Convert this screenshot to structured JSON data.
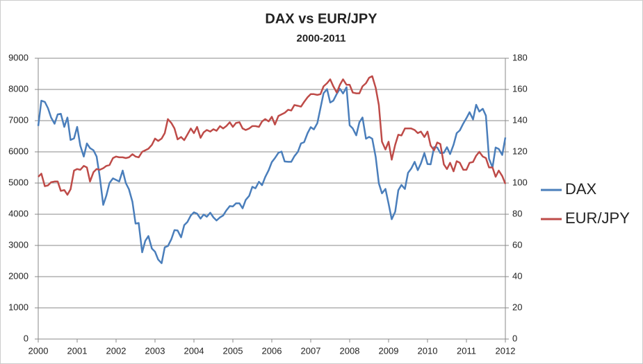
{
  "chart_data": {
    "type": "line",
    "title": "DAX vs EUR/JPY",
    "subtitle": "2000-2011",
    "x": [
      2000,
      2000.08,
      2000.17,
      2000.25,
      2000.33,
      2000.42,
      2000.5,
      2000.58,
      2000.67,
      2000.75,
      2000.83,
      2000.92,
      2001,
      2001.08,
      2001.17,
      2001.25,
      2001.33,
      2001.42,
      2001.5,
      2001.58,
      2001.67,
      2001.75,
      2001.83,
      2001.92,
      2002,
      2002.08,
      2002.17,
      2002.25,
      2002.33,
      2002.42,
      2002.5,
      2002.58,
      2002.67,
      2002.75,
      2002.83,
      2002.92,
      2003,
      2003.08,
      2003.17,
      2003.25,
      2003.33,
      2003.42,
      2003.5,
      2003.58,
      2003.67,
      2003.75,
      2003.83,
      2003.92,
      2004,
      2004.08,
      2004.17,
      2004.25,
      2004.33,
      2004.42,
      2004.5,
      2004.58,
      2004.67,
      2004.75,
      2004.83,
      2004.92,
      2005,
      2005.08,
      2005.17,
      2005.25,
      2005.33,
      2005.42,
      2005.5,
      2005.58,
      2005.67,
      2005.75,
      2005.83,
      2005.92,
      2006,
      2006.08,
      2006.17,
      2006.25,
      2006.33,
      2006.42,
      2006.5,
      2006.58,
      2006.67,
      2006.75,
      2006.83,
      2006.92,
      2007,
      2007.08,
      2007.17,
      2007.25,
      2007.33,
      2007.42,
      2007.5,
      2007.58,
      2007.67,
      2007.75,
      2007.83,
      2007.92,
      2008,
      2008.08,
      2008.17,
      2008.25,
      2008.33,
      2008.42,
      2008.5,
      2008.58,
      2008.67,
      2008.75,
      2008.83,
      2008.92,
      2009,
      2009.08,
      2009.17,
      2009.25,
      2009.33,
      2009.42,
      2009.5,
      2009.58,
      2009.67,
      2009.75,
      2009.83,
      2009.92,
      2010,
      2010.08,
      2010.17,
      2010.25,
      2010.33,
      2010.42,
      2010.5,
      2010.58,
      2010.67,
      2010.75,
      2010.83,
      2010.92,
      2011,
      2011.08,
      2011.17,
      2011.25,
      2011.33,
      2011.42,
      2011.5,
      2011.58,
      2011.67,
      2011.75,
      2011.83,
      2011.92,
      2012
    ],
    "series": [
      {
        "name": "DAX",
        "color": "#4a7ebb",
        "axis": "y",
        "values": [
          6830,
          7640,
          7600,
          7400,
          7100,
          6900,
          7200,
          7220,
          6800,
          7100,
          6380,
          6430,
          6800,
          6200,
          5850,
          6270,
          6120,
          6050,
          5850,
          5200,
          4300,
          4600,
          5000,
          5150,
          5100,
          5050,
          5400,
          5000,
          4800,
          4400,
          3700,
          3720,
          2780,
          3150,
          3300,
          2900,
          2800,
          2550,
          2430,
          2940,
          2980,
          3200,
          3490,
          3480,
          3260,
          3650,
          3750,
          3960,
          4060,
          4020,
          3860,
          3990,
          3920,
          4050,
          3900,
          3800,
          3900,
          3960,
          4120,
          4260,
          4250,
          4350,
          4350,
          4190,
          4460,
          4590,
          4880,
          4830,
          5040,
          4930,
          5190,
          5410,
          5670,
          5800,
          5970,
          6010,
          5690,
          5680,
          5680,
          5860,
          6000,
          6270,
          6310,
          6600,
          6790,
          6720,
          6920,
          7400,
          7880,
          8010,
          7580,
          7640,
          7860,
          8020,
          7870,
          8070,
          6850,
          6750,
          6530,
          6950,
          7100,
          6420,
          6480,
          6420,
          5830,
          4990,
          4670,
          4810,
          4340,
          3840,
          4080,
          4770,
          4940,
          4810,
          5330,
          5460,
          5680,
          5410,
          5630,
          5960,
          5610,
          5600,
          6150,
          6140,
          5960,
          5970,
          6150,
          5930,
          6230,
          6600,
          6690,
          6910,
          7080,
          7270,
          7040,
          7510,
          7290,
          7380,
          7160,
          5780,
          5500,
          6140,
          6090,
          5900,
          6460
        ]
      },
      {
        "name": "EUR/JPY",
        "color": "#be4b48",
        "axis": "y2",
        "values": [
          104,
          106,
          98,
          98.5,
          100.5,
          101,
          101,
          95,
          95.5,
          92.5,
          96,
          108,
          109,
          108.5,
          111,
          110,
          101,
          107,
          109,
          108.5,
          109.5,
          111,
          111.5,
          116,
          117,
          116.5,
          116.5,
          116,
          116.5,
          118.5,
          117,
          116.5,
          120,
          121,
          122,
          124.5,
          128.5,
          127,
          128.5,
          132,
          141,
          138.5,
          135,
          128,
          129.5,
          127.5,
          131,
          135,
          132,
          136,
          129,
          132.5,
          134,
          133,
          134.5,
          133.5,
          136.5,
          135,
          136.5,
          139,
          136,
          138.5,
          139,
          135,
          134,
          135,
          136.5,
          136.5,
          136,
          139.5,
          141,
          139.5,
          142.5,
          137.5,
          143,
          144,
          145,
          147,
          146.5,
          150,
          149.5,
          149,
          152,
          155,
          157,
          157,
          156.5,
          157,
          162,
          164,
          166.5,
          162,
          158,
          163,
          166.5,
          163,
          163,
          158,
          157.5,
          157.5,
          162,
          164,
          167.5,
          168.5,
          161,
          150,
          126.5,
          121.5,
          126.5,
          115,
          124.5,
          131,
          130.5,
          135,
          135,
          135,
          134,
          132,
          133,
          129.5,
          133,
          124,
          121,
          126,
          125,
          112,
          109,
          113,
          107.5,
          114,
          113,
          108.5,
          108.5,
          113,
          113.5,
          117.5,
          120,
          117,
          116,
          110,
          110,
          104,
          108,
          104.5,
          99.5
        ]
      }
    ],
    "xlim": [
      2000,
      2012
    ],
    "xticks": [
      2000,
      2001,
      2002,
      2003,
      2004,
      2005,
      2006,
      2007,
      2008,
      2009,
      2010,
      2011,
      2012
    ],
    "ylim": [
      0,
      9000
    ],
    "yticks": [
      0,
      1000,
      2000,
      3000,
      4000,
      5000,
      6000,
      7000,
      8000,
      9000
    ],
    "y2lim": [
      0,
      180
    ],
    "y2ticks": [
      0,
      20,
      40,
      60,
      80,
      100,
      120,
      140,
      160,
      180
    ],
    "grid": true,
    "legend": "right"
  }
}
